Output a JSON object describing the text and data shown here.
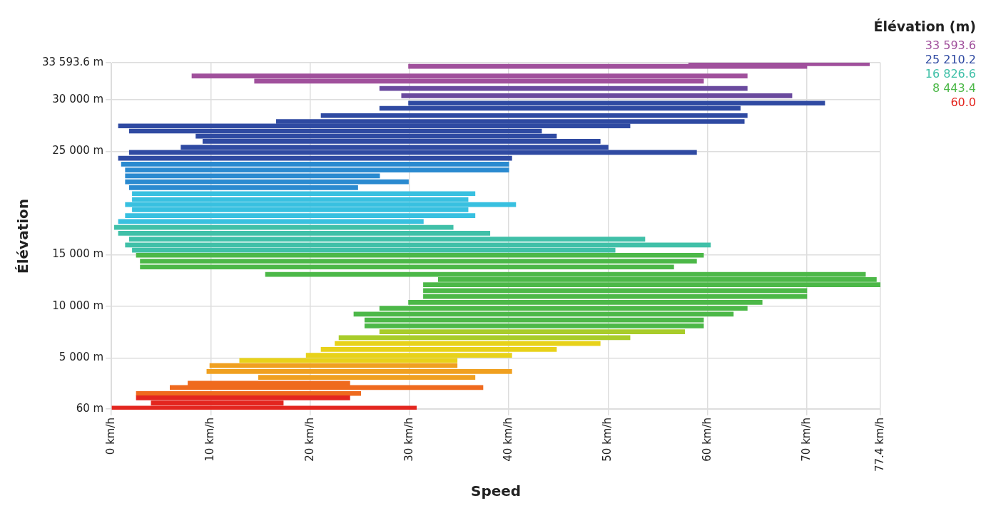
{
  "chart_data": {
    "type": "bar",
    "orientation": "horizontal",
    "xlabel": "Speed",
    "ylabel": "Élévation",
    "legend_title": "Élévation (m)",
    "annotations": [
      "33 593.6",
      "25 210.2",
      "16 826.6",
      "8 443.4",
      "60.0"
    ],
    "xlim": [
      0,
      77.4
    ],
    "xticks": [
      {
        "value": 0,
        "label": "0 km/h"
      },
      {
        "value": 10,
        "label": "10 km/h"
      },
      {
        "value": 20,
        "label": "20 km/h"
      },
      {
        "value": 30,
        "label": "30 km/h"
      },
      {
        "value": 40,
        "label": "40 km/h"
      },
      {
        "value": 50,
        "label": "50 km/h"
      },
      {
        "value": 60,
        "label": "60 km/h"
      },
      {
        "value": 70,
        "label": "70 km/h"
      },
      {
        "value": 77.4,
        "label": "77.4 km/h"
      }
    ],
    "ylim": [
      0,
      33593.6
    ],
    "yticks": [
      {
        "value": 60,
        "label": "60 m"
      },
      {
        "value": 5000,
        "label": "5 000 m"
      },
      {
        "value": 10000,
        "label": "10 000 m"
      },
      {
        "value": 15000,
        "label": "15 000 m"
      },
      {
        "value": 25000,
        "label": "25 000 m"
      },
      {
        "value": 30000,
        "label": "30 000 m"
      },
      {
        "value": 33593.6,
        "label": "33 593.6 m"
      }
    ],
    "grid": true,
    "legend": false,
    "x": [
      33500,
      33240,
      32310,
      31810,
      31100,
      30390,
      29680,
      29180,
      28470,
      27900,
      27470,
      26970,
      26480,
      25980,
      25410,
      24910,
      24340,
      23770,
      23200,
      22630,
      22060,
      21490,
      20920,
      20350,
      19860,
      19360,
      18790,
      18220,
      17650,
      17080,
      16510,
      15940,
      15440,
      14950,
      14380,
      13810,
      13100,
      12600,
      12100,
      11530,
      10960,
      10390,
      9820,
      9250,
      8680,
      8110,
      7540,
      6970,
      6410,
      5840,
      5270,
      4770,
      4270,
      3700,
      3130,
      2560,
      2140,
      1570,
      1140,
      640,
      140
    ],
    "base": [
      58.1,
      29.9,
      8.1,
      14.4,
      27.0,
      29.2,
      29.9,
      27.0,
      21.1,
      16.6,
      0.7,
      1.8,
      8.5,
      9.2,
      7.0,
      1.8,
      0.7,
      1.0,
      1.4,
      1.4,
      1.4,
      1.8,
      2.1,
      2.1,
      1.4,
      2.1,
      1.4,
      0.7,
      0.3,
      0.7,
      1.8,
      1.4,
      2.1,
      2.5,
      2.9,
      2.9,
      15.5,
      32.9,
      31.4,
      31.4,
      31.4,
      29.9,
      27.0,
      24.4,
      25.5,
      25.5,
      27.0,
      22.9,
      22.5,
      21.1,
      19.6,
      12.9,
      9.9,
      9.6,
      14.8,
      7.7,
      5.9,
      2.5,
      2.5,
      4.0,
      0
    ],
    "values": [
      18.2,
      40.1,
      55.9,
      45.2,
      37.0,
      39.3,
      41.9,
      36.3,
      42.9,
      47.1,
      51.5,
      41.5,
      36.3,
      40.0,
      43.0,
      57.1,
      39.6,
      39.0,
      38.6,
      25.6,
      28.5,
      23.0,
      34.5,
      33.8,
      39.3,
      33.8,
      35.2,
      30.7,
      34.1,
      37.4,
      51.9,
      58.9,
      48.6,
      57.1,
      56.0,
      53.7,
      60.4,
      44.1,
      46.0,
      38.6,
      38.6,
      35.6,
      37.0,
      38.2,
      34.1,
      34.1,
      30.7,
      29.3,
      26.7,
      23.7,
      20.7,
      21.9,
      24.9,
      30.7,
      21.8,
      16.3,
      31.5,
      22.6,
      21.5,
      13.3,
      30.7
    ],
    "colors": [
      "#a0509c",
      "#a0509c",
      "#a0509c",
      "#a0509c",
      "#6a4a9e",
      "#6a4a9e",
      "#2f4aa2",
      "#2f4aa2",
      "#2f4aa2",
      "#2f4aa2",
      "#2f4aa2",
      "#2f4aa2",
      "#2f4aa2",
      "#2f4aa2",
      "#2f4aa2",
      "#2f4aa2",
      "#2f4aa2",
      "#2a8ad0",
      "#2a8ad0",
      "#2a8ad0",
      "#2a8ad0",
      "#2a8ad0",
      "#38c0e0",
      "#38c0e0",
      "#38c0e0",
      "#38c0e0",
      "#38c0e0",
      "#38c0e0",
      "#40c0a8",
      "#40c0a8",
      "#40c0a8",
      "#40c0a8",
      "#40c0a8",
      "#4cb848",
      "#4cb848",
      "#4cb848",
      "#4cb848",
      "#4cb848",
      "#4cb848",
      "#4cb848",
      "#4cb848",
      "#4cb848",
      "#4cb848",
      "#4cb848",
      "#4cb848",
      "#4cb848",
      "#a8cc2a",
      "#a8cc2a",
      "#e8d21a",
      "#e8d21a",
      "#e8d21a",
      "#e8d21a",
      "#f0a020",
      "#f0a020",
      "#f0a020",
      "#ef6a1e",
      "#ef6a1e",
      "#ef6a1e",
      "#e3261f",
      "#e3261f",
      "#e3261f"
    ]
  }
}
